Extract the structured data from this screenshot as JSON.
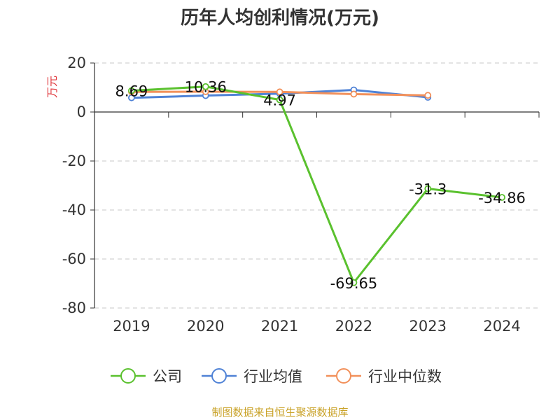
{
  "chart_data": {
    "type": "line",
    "title": "历年人均创利情况(万元)",
    "ylabel": "万元",
    "categories": [
      "2019",
      "2020",
      "2021",
      "2022",
      "2023",
      "2024"
    ],
    "yticks": [
      "20",
      "0",
      "-20",
      "-40",
      "-60",
      "-80"
    ],
    "ylim": [
      -80,
      20
    ],
    "grid": true,
    "legend_position": "bottom",
    "series": [
      {
        "name": "公司",
        "color": "#5ac12e",
        "values": [
          8.69,
          10.36,
          4.97,
          -69.65,
          -31.3,
          -34.86
        ],
        "labels": [
          "8.69",
          "10.36",
          "4.97",
          "-69.65",
          "-31.3",
          "-34.86"
        ]
      },
      {
        "name": "行业均值",
        "color": "#4f82d6",
        "values": [
          5.8,
          6.7,
          7.5,
          9.0,
          6.0,
          null
        ]
      },
      {
        "name": "行业中位数",
        "color": "#f2905a",
        "values": [
          8.2,
          8.3,
          8.2,
          7.3,
          6.8,
          null
        ]
      }
    ]
  },
  "source_text": "制图数据来自恒生聚源数据库",
  "source_color": "#c9a227",
  "ylabel_color": "#e0393e"
}
